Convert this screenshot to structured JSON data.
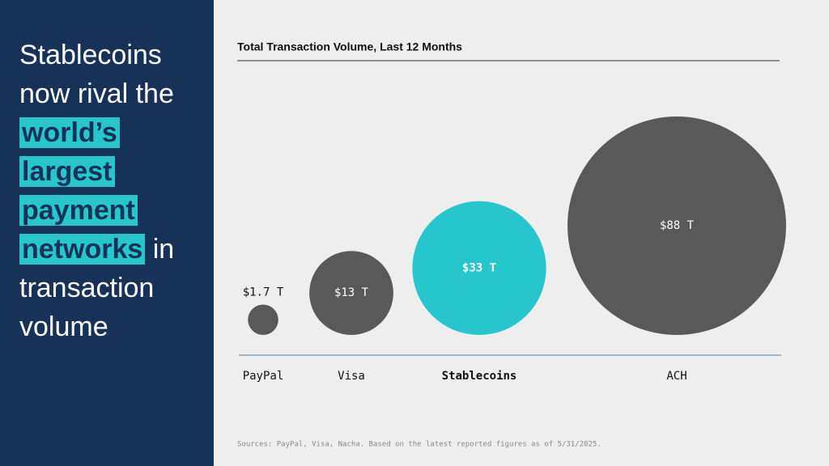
{
  "headline": {
    "before": "Stablecoins now rival the",
    "highlight": "world’s largest payment networks",
    "after": "in transaction volume"
  },
  "chart_data": {
    "type": "bubble",
    "title": "Total Transaction Volume, Last 12 Months",
    "categories": [
      "PayPal",
      "Visa",
      "Stablecoins",
      "ACH"
    ],
    "values": [
      1.7,
      13,
      33,
      88
    ],
    "value_labels": [
      "$1.7 T",
      "$13 T",
      "$33 T",
      "$88 T"
    ],
    "colors": [
      "#595959",
      "#595959",
      "#26c6cc",
      "#595959"
    ],
    "note": "Sources: PayPal, Visa, Nacha. Based on the latest reported figures as of 5/31/2025."
  }
}
